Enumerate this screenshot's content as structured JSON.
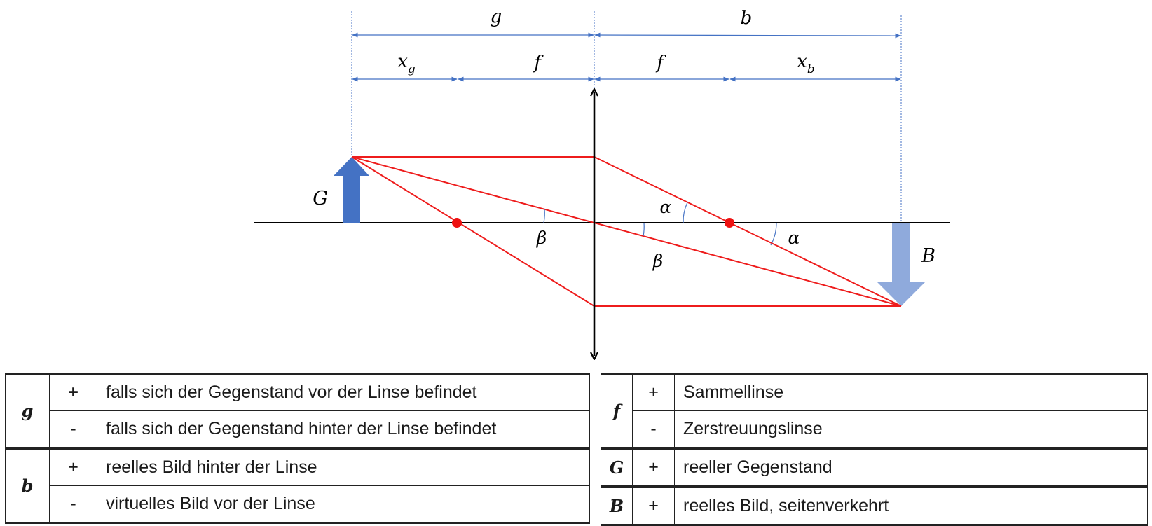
{
  "diagram": {
    "labels": {
      "g": "g",
      "b": "b",
      "x_g_base": "x",
      "x_g_sub": "g",
      "f_left": "f",
      "f_right": "f",
      "x_b_base": "x",
      "x_b_sub": "b",
      "G": "G",
      "B": "B",
      "alpha_top": "α",
      "alpha_right": "α",
      "beta_left": "β",
      "beta_bottom": "β"
    },
    "colors": {
      "ray": "#ee1c1c",
      "focal_point": "#ee1111",
      "dimension": "#4472c4",
      "object_arrow": "#4472c4",
      "image_arrow": "#8faadc",
      "lens": "#000000",
      "axis": "#000000"
    }
  },
  "tables": {
    "left": [
      {
        "symbol": "g",
        "rows": [
          {
            "sign": "+",
            "text": "falls sich der Gegenstand vor der Linse befindet"
          },
          {
            "sign": "-",
            "text": "falls sich der Gegenstand hinter der Linse befindet"
          }
        ]
      },
      {
        "symbol": "b",
        "rows": [
          {
            "sign": "+",
            "text": "reelles Bild hinter der Linse"
          },
          {
            "sign": "-",
            "text": "virtuelles Bild vor der Linse"
          }
        ]
      }
    ],
    "right": [
      {
        "symbol": "f",
        "rows": [
          {
            "sign": "+",
            "text": "Sammellinse"
          },
          {
            "sign": "-",
            "text": "Zerstreuungslinse"
          }
        ]
      },
      {
        "symbol": "G",
        "rows": [
          {
            "sign": "+",
            "text": "reeller Gegenstand"
          }
        ]
      },
      {
        "symbol": "B",
        "rows": [
          {
            "sign": "+",
            "text": "reelles Bild, seitenverkehrt"
          }
        ]
      }
    ]
  }
}
